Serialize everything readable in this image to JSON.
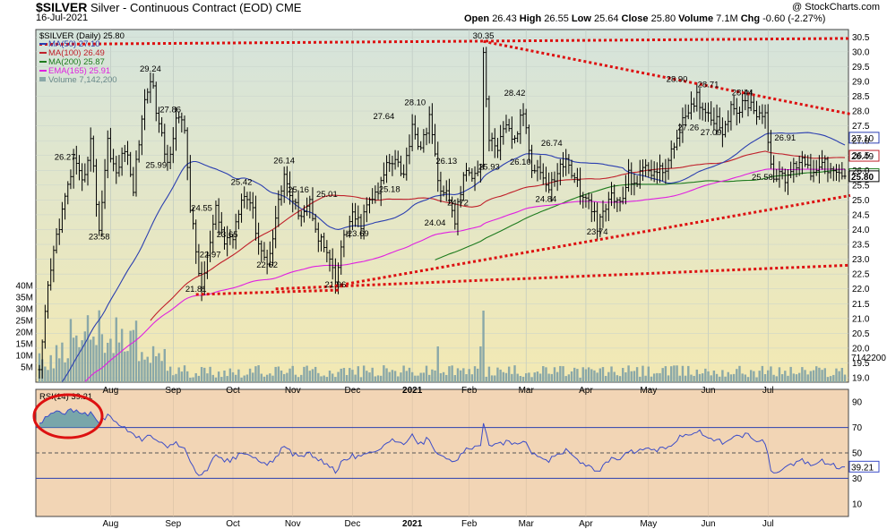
{
  "header": {
    "symbol": "$SILVER",
    "description": "Silver - Continuous Contract (EOD)",
    "exchange": "CME",
    "date": "16-Jul-2021",
    "copyright": "@ StockCharts.com",
    "open_label": "Open",
    "open": "26.43",
    "high_label": "High",
    "high": "26.55",
    "low_label": "Low",
    "low": "25.64",
    "close_label": "Close",
    "close": "25.80",
    "volume_label": "Volume",
    "volume": "7.1M",
    "chg_label": "Chg",
    "chg": "-0.60 (-2.27%)"
  },
  "legend": {
    "title": "$SILVER (Daily) 25.80",
    "ma50": "MA(50) 27.10",
    "ma100": "MA(100) 26.49",
    "ma200": "MA(200) 25.87",
    "ema165": "EMA(165) 25.91",
    "volume": "Volume 7,142,200"
  },
  "rsi_legend": "RSI(14) 39.21",
  "colors": {
    "price_bg_top": "#d5e4dc",
    "price_bg_bottom": "#f3e9b3",
    "rsi_bg": "#f2d5b5",
    "ma50": "#2b3fb0",
    "ma100": "#c0202a",
    "ma200": "#1e7b1e",
    "ema165": "#e020e0",
    "volume": "#8aa8a8",
    "trend": "#dd1111",
    "rsi_line": "#3b4cc8",
    "highlight": "#dd1111"
  },
  "chart_data": [
    {
      "type": "ohlc",
      "title": "$SILVER (Daily) 25.80",
      "x_labels": [
        "Aug",
        "Sep",
        "Oct",
        "Nov",
        "Dec",
        "2021",
        "Feb",
        "Mar",
        "Apr",
        "May",
        "Jun",
        "Jul"
      ],
      "y_ticks": [
        19.0,
        19.5,
        20.0,
        20.5,
        21.0,
        21.5,
        22.0,
        22.5,
        23.0,
        23.5,
        24.0,
        24.5,
        25.0,
        25.5,
        26.0,
        26.5,
        27.0,
        27.5,
        28.0,
        28.5,
        29.0,
        29.5,
        30.0,
        30.5
      ],
      "ylim": [
        18.85,
        30.75
      ],
      "close_path": [
        [
          0,
          19.1
        ],
        [
          3,
          22.0
        ],
        [
          6,
          23.8
        ],
        [
          9,
          25.0
        ],
        [
          12,
          26.3
        ],
        [
          15,
          25.5
        ],
        [
          18,
          27.0
        ],
        [
          21,
          24.0
        ],
        [
          24,
          27.0
        ],
        [
          27,
          25.8
        ],
        [
          30,
          26.8
        ],
        [
          33,
          25.4
        ],
        [
          36,
          27.8
        ],
        [
          39,
          29.2
        ],
        [
          42,
          27.5
        ],
        [
          45,
          26.2
        ],
        [
          48,
          27.8
        ],
        [
          51,
          27.4
        ],
        [
          53,
          24.8
        ],
        [
          55,
          23.2
        ],
        [
          57,
          22.0
        ],
        [
          59,
          23.0
        ],
        [
          62,
          24.6
        ],
        [
          65,
          23.6
        ],
        [
          68,
          23.8
        ],
        [
          71,
          25.2
        ],
        [
          74,
          25.0
        ],
        [
          77,
          23.6
        ],
        [
          80,
          22.8
        ],
        [
          83,
          24.4
        ],
        [
          86,
          25.9
        ],
        [
          89,
          24.8
        ],
        [
          92,
          24.6
        ],
        [
          95,
          24.9
        ],
        [
          98,
          23.8
        ],
        [
          101,
          23.2
        ],
        [
          104,
          22.2
        ],
        [
          107,
          23.8
        ],
        [
          110,
          24.4
        ],
        [
          113,
          24.2
        ],
        [
          116,
          25.0
        ],
        [
          119,
          25.2
        ],
        [
          122,
          26.2
        ],
        [
          125,
          26.5
        ],
        [
          128,
          25.8
        ],
        [
          131,
          27.6
        ],
        [
          134,
          26.6
        ],
        [
          137,
          27.9
        ],
        [
          140,
          25.6
        ],
        [
          143,
          25.2
        ],
        [
          146,
          24.3
        ],
        [
          149,
          25.8
        ],
        [
          152,
          25.9
        ],
        [
          155,
          26.2
        ],
        [
          156,
          30.0
        ],
        [
          158,
          27.0
        ],
        [
          161,
          26.8
        ],
        [
          164,
          27.4
        ],
        [
          167,
          27.0
        ],
        [
          170,
          28.0
        ],
        [
          173,
          26.2
        ],
        [
          176,
          26.0
        ],
        [
          179,
          25.3
        ],
        [
          182,
          26.0
        ],
        [
          185,
          26.3
        ],
        [
          188,
          25.8
        ],
        [
          191,
          25.0
        ],
        [
          194,
          24.8
        ],
        [
          196,
          24.0
        ],
        [
          198,
          24.5
        ],
        [
          201,
          25.2
        ],
        [
          204,
          24.8
        ],
        [
          207,
          25.8
        ],
        [
          210,
          25.6
        ],
        [
          213,
          26.2
        ],
        [
          216,
          25.9
        ],
        [
          219,
          26.0
        ],
        [
          222,
          26.5
        ],
        [
          225,
          27.5
        ],
        [
          228,
          27.8
        ],
        [
          231,
          28.5
        ],
        [
          234,
          28.0
        ],
        [
          237,
          27.8
        ],
        [
          240,
          27.4
        ],
        [
          243,
          28.0
        ],
        [
          246,
          28.1
        ],
        [
          249,
          28.3
        ],
        [
          252,
          28.0
        ],
        [
          255,
          27.9
        ],
        [
          257,
          26.0
        ],
        [
          259,
          25.8
        ],
        [
          262,
          25.7
        ],
        [
          265,
          26.1
        ],
        [
          268,
          26.5
        ],
        [
          271,
          25.9
        ],
        [
          274,
          26.3
        ],
        [
          277,
          26.1
        ],
        [
          280,
          25.8
        ]
      ],
      "annotations": [
        {
          "label": "26.27",
          "x": 9,
          "y": 26.27
        },
        {
          "label": "23.58",
          "x": 21,
          "y": 23.58
        },
        {
          "label": "29.24",
          "x": 39,
          "y": 29.24
        },
        {
          "label": "27.86",
          "x": 46,
          "y": 27.86
        },
        {
          "label": "25.99",
          "x": 41,
          "y": 25.99
        },
        {
          "label": "24.55",
          "x": 57,
          "y": 24.55
        },
        {
          "label": "21.81",
          "x": 55,
          "y": 21.81
        },
        {
          "label": "22.97",
          "x": 60,
          "y": 22.97
        },
        {
          "label": "25.42",
          "x": 71,
          "y": 25.42
        },
        {
          "label": "23.65",
          "x": 66,
          "y": 23.65
        },
        {
          "label": "26.14",
          "x": 86,
          "y": 26.14
        },
        {
          "label": "25.16",
          "x": 91,
          "y": 25.16
        },
        {
          "label": "22.62",
          "x": 80,
          "y": 22.62
        },
        {
          "label": "25.01",
          "x": 101,
          "y": 25.01
        },
        {
          "label": "21.96",
          "x": 104,
          "y": 21.96
        },
        {
          "label": "23.69",
          "x": 112,
          "y": 23.69
        },
        {
          "label": "27.64",
          "x": 121,
          "y": 27.64
        },
        {
          "label": "25.18",
          "x": 123,
          "y": 25.18
        },
        {
          "label": "28.10",
          "x": 132,
          "y": 28.1
        },
        {
          "label": "26.13",
          "x": 143,
          "y": 26.13
        },
        {
          "label": "24.04",
          "x": 139,
          "y": 24.04
        },
        {
          "label": "24.72",
          "x": 147,
          "y": 24.72
        },
        {
          "label": "30.35",
          "x": 156,
          "y": 30.35
        },
        {
          "label": "25.93",
          "x": 158,
          "y": 25.93
        },
        {
          "label": "28.42",
          "x": 167,
          "y": 28.42
        },
        {
          "label": "26.10",
          "x": 169,
          "y": 26.1
        },
        {
          "label": "26.74",
          "x": 180,
          "y": 26.74
        },
        {
          "label": "24.84",
          "x": 178,
          "y": 24.84
        },
        {
          "label": "23.74",
          "x": 196,
          "y": 23.74
        },
        {
          "label": "28.90",
          "x": 224,
          "y": 28.9
        },
        {
          "label": "27.26",
          "x": 228,
          "y": 27.26
        },
        {
          "label": "28.71",
          "x": 235,
          "y": 28.71
        },
        {
          "label": "27.09",
          "x": 236,
          "y": 27.09
        },
        {
          "label": "28.44",
          "x": 247,
          "y": 28.44
        },
        {
          "label": "26.91",
          "x": 262,
          "y": 26.91
        },
        {
          "label": "25.58",
          "x": 254,
          "y": 25.58
        }
      ],
      "last_values": [
        {
          "label": "27.10",
          "y": 27.1,
          "color": "#2b3fb0"
        },
        {
          "label": "26.49",
          "y": 26.49,
          "color": "#c0202a"
        },
        {
          "label": "25.87",
          "y": 25.87,
          "color": "#1e7b1e"
        },
        {
          "label": "25.80",
          "y": 25.8,
          "color": "#000000"
        }
      ],
      "trendlines": [
        {
          "from": [
            0,
            30.25
          ],
          "to": [
            283,
            30.45
          ]
        },
        {
          "from": [
            156,
            30.35
          ],
          "to": [
            283,
            27.9
          ]
        },
        {
          "from": [
            55,
            21.81
          ],
          "to": [
            104,
            21.96
          ]
        },
        {
          "from": [
            104,
            22.1
          ],
          "to": [
            283,
            25.15
          ]
        },
        {
          "from": [
            83,
            22.0
          ],
          "to": [
            283,
            22.8
          ]
        }
      ]
    },
    {
      "type": "bar",
      "title": "Volume",
      "y_ticks": [
        "5M",
        "10M",
        "15M",
        "20M",
        "25M",
        "30M",
        "35M",
        "40M"
      ],
      "last_value_label": "7142200"
    },
    {
      "type": "line",
      "title": "RSI(14) 39.21",
      "y_ticks": [
        10,
        30,
        50,
        70,
        90
      ],
      "ylim": [
        0,
        100
      ],
      "reference_lines": [
        70,
        50,
        30
      ],
      "last_value_label": "39.21",
      "path": [
        [
          0,
          72
        ],
        [
          3,
          80
        ],
        [
          6,
          83
        ],
        [
          9,
          81
        ],
        [
          12,
          84
        ],
        [
          15,
          79
        ],
        [
          18,
          82
        ],
        [
          21,
          74
        ],
        [
          24,
          80
        ],
        [
          27,
          73
        ],
        [
          30,
          71
        ],
        [
          33,
          64
        ],
        [
          36,
          60
        ],
        [
          39,
          64
        ],
        [
          42,
          58
        ],
        [
          45,
          55
        ],
        [
          48,
          58
        ],
        [
          51,
          54
        ],
        [
          53,
          42
        ],
        [
          55,
          34
        ],
        [
          57,
          33
        ],
        [
          59,
          38
        ],
        [
          62,
          48
        ],
        [
          65,
          43
        ],
        [
          68,
          45
        ],
        [
          71,
          50
        ],
        [
          74,
          48
        ],
        [
          77,
          44
        ],
        [
          80,
          40
        ],
        [
          83,
          47
        ],
        [
          86,
          55
        ],
        [
          89,
          49
        ],
        [
          92,
          47
        ],
        [
          95,
          50
        ],
        [
          98,
          44
        ],
        [
          101,
          42
        ],
        [
          104,
          36
        ],
        [
          107,
          44
        ],
        [
          110,
          48
        ],
        [
          113,
          46
        ],
        [
          116,
          52
        ],
        [
          119,
          53
        ],
        [
          122,
          58
        ],
        [
          125,
          60
        ],
        [
          128,
          55
        ],
        [
          131,
          63
        ],
        [
          134,
          57
        ],
        [
          137,
          62
        ],
        [
          140,
          48
        ],
        [
          143,
          45
        ],
        [
          146,
          42
        ],
        [
          149,
          52
        ],
        [
          152,
          53
        ],
        [
          155,
          55
        ],
        [
          156,
          72
        ],
        [
          158,
          58
        ],
        [
          161,
          56
        ],
        [
          164,
          59
        ],
        [
          167,
          56
        ],
        [
          170,
          61
        ],
        [
          173,
          50
        ],
        [
          176,
          48
        ],
        [
          179,
          44
        ],
        [
          182,
          49
        ],
        [
          185,
          52
        ],
        [
          188,
          47
        ],
        [
          191,
          41
        ],
        [
          194,
          40
        ],
        [
          196,
          34
        ],
        [
          198,
          39
        ],
        [
          201,
          46
        ],
        [
          204,
          43
        ],
        [
          207,
          52
        ],
        [
          210,
          50
        ],
        [
          213,
          55
        ],
        [
          216,
          52
        ],
        [
          219,
          53
        ],
        [
          222,
          57
        ],
        [
          225,
          63
        ],
        [
          228,
          65
        ],
        [
          231,
          68
        ],
        [
          234,
          63
        ],
        [
          237,
          61
        ],
        [
          240,
          58
        ],
        [
          243,
          62
        ],
        [
          246,
          63
        ],
        [
          249,
          64
        ],
        [
          252,
          60
        ],
        [
          255,
          58
        ],
        [
          257,
          36
        ],
        [
          259,
          35
        ],
        [
          262,
          37
        ],
        [
          265,
          41
        ],
        [
          268,
          45
        ],
        [
          271,
          40
        ],
        [
          274,
          44
        ],
        [
          277,
          42
        ],
        [
          280,
          39
        ]
      ]
    }
  ]
}
